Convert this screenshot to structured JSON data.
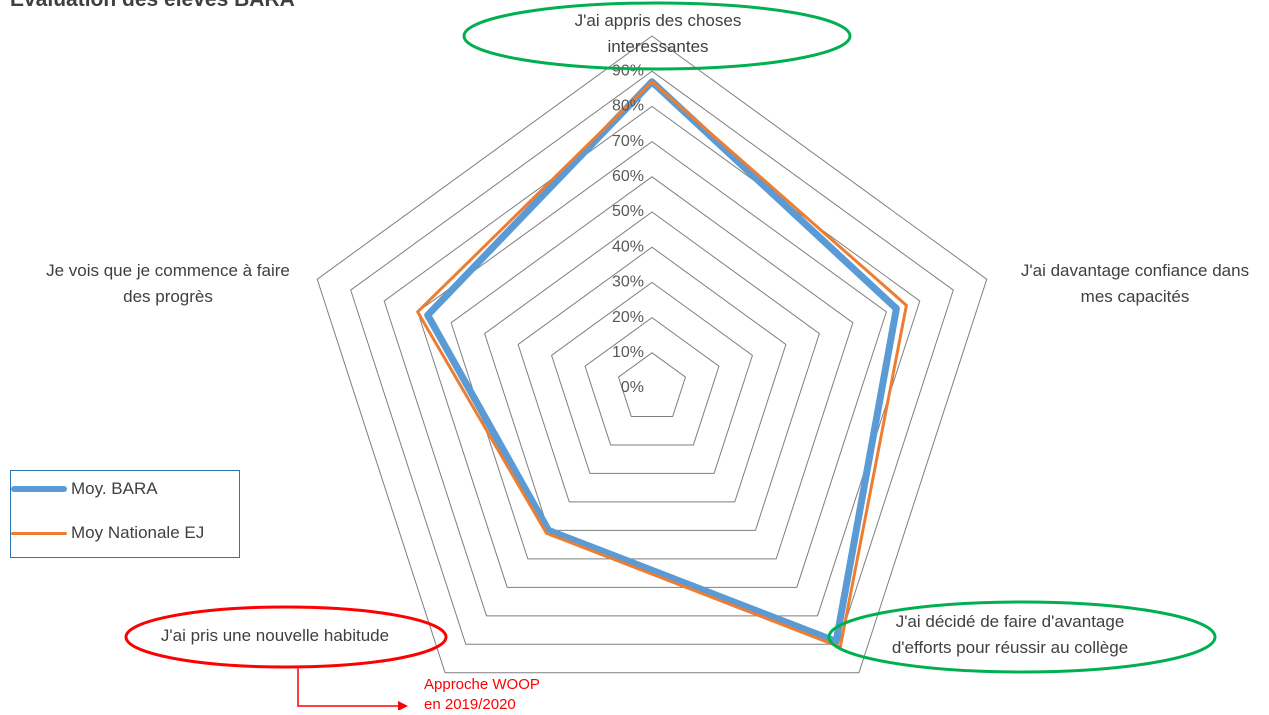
{
  "title": "Evaluation des élèves BARA",
  "chart_data": {
    "type": "radar",
    "categories": [
      "J'ai appris des choses interessantes",
      "J'ai davantage confiance dans mes capacités",
      "J'ai décidé de faire d'avantage d'efforts pour réussir au collège",
      "J'ai pris une nouvelle habitude",
      "Je vois que je commence à faire des progrès"
    ],
    "category_lines": [
      [
        "J'ai appris des choses",
        "interessantes"
      ],
      [
        "J'ai davantage confiance dans",
        "mes capacités"
      ],
      [
        "J'ai décidé de faire d'avantage",
        "d'efforts pour réussir au collège"
      ],
      [
        "J'ai pris une nouvelle habitude"
      ],
      [
        "Je vois que je commence à faire",
        "des progrès"
      ]
    ],
    "ticks": [
      "0%",
      "10%",
      "20%",
      "30%",
      "40%",
      "50%",
      "60%",
      "70%",
      "80%",
      "90%"
    ],
    "rmax": 0.9,
    "grid_levels": 10,
    "series": [
      {
        "name": "Moy. BARA",
        "values": [
          0.87,
          0.73,
          0.89,
          0.5,
          0.67
        ],
        "color": "#5b9bd5"
      },
      {
        "name": "Moy Nationale EJ",
        "values": [
          0.87,
          0.76,
          0.91,
          0.51,
          0.7
        ],
        "color": "#ed7d31"
      }
    ],
    "highlight_colors": {
      "green": "#00b050",
      "red": "#ff0000"
    }
  },
  "annotation": {
    "text": "Approche WOOP\nen 2019/2020",
    "color": "#ff0000"
  }
}
